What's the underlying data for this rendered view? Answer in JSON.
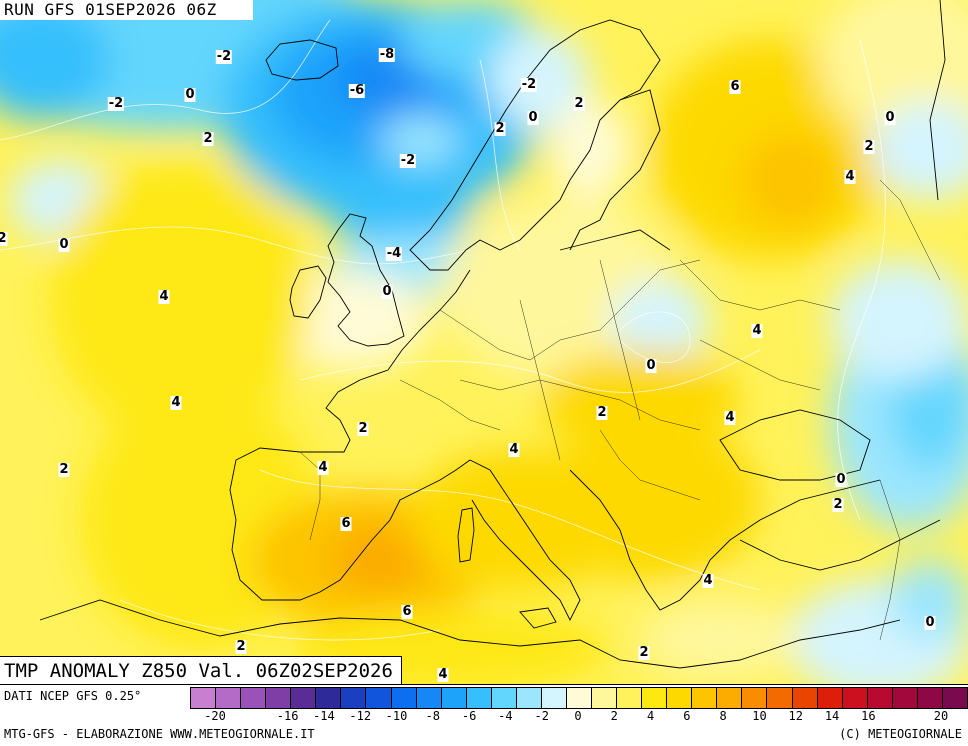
{
  "header": {
    "run": "RUN GFS 01SEP2026 06Z"
  },
  "title": "TMP ANOMALY Z850 Val. 06Z02SEP2026",
  "footer": {
    "source": "DATI NCEP GFS 0.25°",
    "credit_left": "MTG-GFS - ELABORAZIONE WWW.METEOGIORNALE.IT",
    "credit_right": "(C) METEOGIORNALE"
  },
  "legend": {
    "colors": [
      "#c87fd0",
      "#b46bc8",
      "#9b52b8",
      "#7e3ea6",
      "#5a2d96",
      "#2e2a9a",
      "#1a3fc0",
      "#1155dd",
      "#0e6ef0",
      "#1688f6",
      "#1ea3fb",
      "#35bffc",
      "#63d6fd",
      "#9be6fe",
      "#d4f4fe",
      "#fffbd6",
      "#fff79c",
      "#fff25a",
      "#fee812",
      "#fdd900",
      "#fdc400",
      "#fcab00",
      "#f98c00",
      "#f36a00",
      "#e94400",
      "#dc1e0a",
      "#cc1020",
      "#b80a30",
      "#a3083c",
      "#8e0846",
      "#7a0a4e"
    ],
    "ticks": [
      "-20",
      "-18",
      "-16",
      "-14",
      "-12",
      "-10",
      "-8",
      "-6",
      "-4",
      "-2",
      "0",
      "2",
      "4",
      "6",
      "8",
      "10",
      "12",
      "14",
      "16",
      "18",
      "20"
    ],
    "tick_labels_shown": [
      "-20",
      "-16",
      "-14",
      "-12",
      "-10",
      "-8",
      "-6",
      "-4",
      "-2",
      "0",
      "2",
      "4",
      "6",
      "8",
      "10",
      "12",
      "14",
      "16",
      "20"
    ]
  },
  "isolines": [
    {
      "v": "-2"
    },
    {
      "v": "-8"
    },
    {
      "v": "-6"
    },
    {
      "v": "-2"
    },
    {
      "v": "0"
    },
    {
      "v": "2"
    },
    {
      "v": "-2"
    },
    {
      "v": "2"
    },
    {
      "v": "-2"
    },
    {
      "v": "0"
    },
    {
      "v": "2"
    },
    {
      "v": "6"
    },
    {
      "v": "0"
    },
    {
      "v": "2"
    },
    {
      "v": "4"
    },
    {
      "v": "2"
    },
    {
      "v": "0"
    },
    {
      "v": "4"
    },
    {
      "v": "-4"
    },
    {
      "v": "0"
    },
    {
      "v": "4"
    },
    {
      "v": "0"
    },
    {
      "v": "4"
    },
    {
      "v": "2"
    },
    {
      "v": "2"
    },
    {
      "v": "4"
    },
    {
      "v": "4"
    },
    {
      "v": "2"
    },
    {
      "v": "4"
    },
    {
      "v": "0"
    },
    {
      "v": "2"
    },
    {
      "v": "6"
    },
    {
      "v": "4"
    },
    {
      "v": "6"
    },
    {
      "v": "2"
    },
    {
      "v": "2"
    },
    {
      "v": "0"
    },
    {
      "v": "4"
    }
  ]
}
